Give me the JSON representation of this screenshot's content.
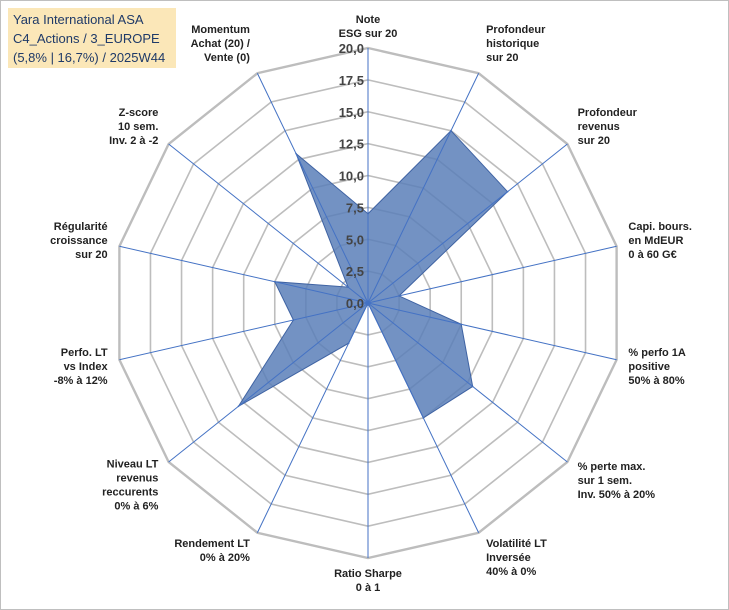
{
  "header": {
    "line1": "Yara International ASA",
    "line2": "C4_Actions / 3_EUROPE",
    "line3": "(5,8% | 16,7%) / 2025W44"
  },
  "colors": {
    "fill": "#5b7fb9",
    "stroke": "#3f63a3",
    "grid": "#bdbdbd",
    "axis": "#4472c4",
    "title_bg": "#fbe7b8"
  },
  "chart_data": {
    "type": "radar",
    "rmin": 0,
    "rmax": 20,
    "tick_step": 2.5,
    "tick_labels": [
      "0,0",
      "2,5",
      "5,0",
      "7,5",
      "10,0",
      "12,5",
      "15,0",
      "17,5",
      "20,0"
    ],
    "categories": [
      [
        "Note",
        "ESG sur 20"
      ],
      [
        "Profondeur",
        "historique",
        "sur 20"
      ],
      [
        "Profondeur",
        "revenus",
        "sur 20"
      ],
      [
        "Capi. bours.",
        "en MdEUR",
        "0 à 60 G€"
      ],
      [
        "% perfo 1A",
        "positive",
        "50% à 80%"
      ],
      [
        "% perte max.",
        "sur 1 sem.",
        "Inv. 50% à 20%"
      ],
      [
        "Volatilité LT",
        "Inversée",
        "40% à 0%"
      ],
      [
        "Ratio Sharpe",
        "0 à 1"
      ],
      [
        "Rendement LT",
        "0% à 20%"
      ],
      [
        "Niveau LT",
        "revenus",
        "reccurents",
        "0% à 6%"
      ],
      [
        "Perfo. LT",
        "vs Index",
        "-8% à 12%"
      ],
      [
        "Régularité",
        "croissance",
        "sur 20"
      ],
      [
        "Z-score",
        "10 sem.",
        "Inv. 2 à -2"
      ],
      [
        "Momentum",
        "Achat (20) /",
        "Vente (0)"
      ]
    ],
    "series": [
      {
        "name": "Yara International ASA",
        "values": [
          7.0,
          15.0,
          14.0,
          2.5,
          7.5,
          10.5,
          10.0,
          0.0,
          3.5,
          13.0,
          6.0,
          7.5,
          2.0,
          13.0
        ]
      }
    ]
  }
}
